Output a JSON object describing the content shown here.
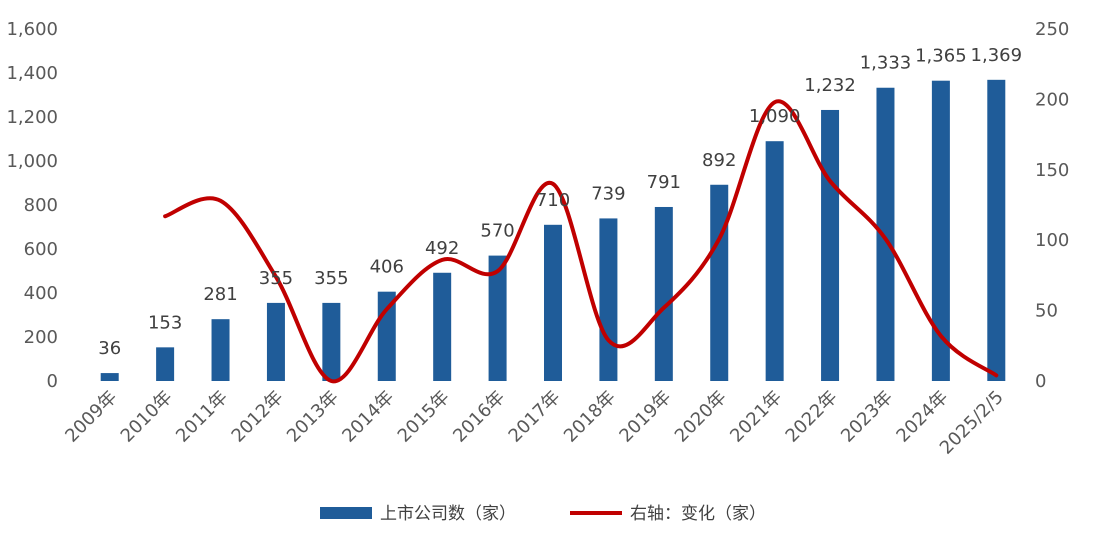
{
  "chart_data": {
    "type": "bar",
    "categories": [
      "2009年",
      "2010年",
      "2011年",
      "2012年",
      "2013年",
      "2014年",
      "2015年",
      "2016年",
      "2017年",
      "2018年",
      "2019年",
      "2020年",
      "2021年",
      "2022年",
      "2023年",
      "2024年",
      "2025/2/5"
    ],
    "series": [
      {
        "name": "上市公司数（家）",
        "type": "bar",
        "axis": "left",
        "color": "#1f5c99",
        "values": [
          36,
          153,
          281,
          355,
          355,
          406,
          492,
          570,
          710,
          739,
          791,
          892,
          1090,
          1232,
          1333,
          1365,
          1369
        ],
        "value_labels": [
          "36",
          "153",
          "281",
          "355",
          "355",
          "406",
          "492",
          "570",
          "710",
          "739",
          "791",
          "892",
          "1,090",
          "1,232",
          "1,333",
          "1,365",
          "1,369"
        ]
      },
      {
        "name": "右轴：变化（家）",
        "type": "line",
        "axis": "right",
        "color": "#c00000",
        "smooth": true,
        "values": [
          null,
          117,
          128,
          74,
          0,
          51,
          86,
          78,
          140,
          29,
          52,
          101,
          198,
          142,
          101,
          32,
          4
        ]
      }
    ],
    "y_left": {
      "min": 0,
      "max": 1600,
      "ticks": [
        0,
        200,
        400,
        600,
        800,
        1000,
        1200,
        1400,
        1600
      ],
      "tick_labels": [
        "0",
        "200",
        "400",
        "600",
        "800",
        "1,000",
        "1,200",
        "1,400",
        "1,600"
      ]
    },
    "y_right": {
      "min": 0,
      "max": 250,
      "ticks": [
        0,
        50,
        100,
        150,
        200,
        250
      ],
      "tick_labels": [
        "0",
        "50",
        "100",
        "150",
        "200",
        "250"
      ]
    },
    "grid": false,
    "legend": "bottom",
    "title": "",
    "xlabel": "",
    "ylabel": ""
  }
}
